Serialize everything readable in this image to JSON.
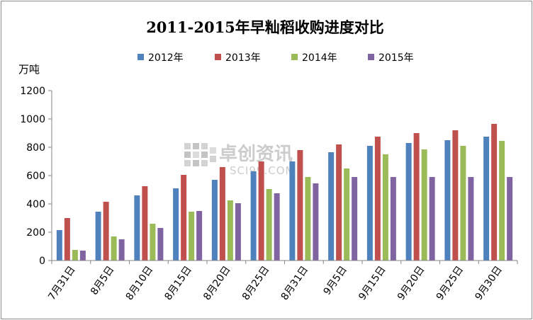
{
  "chart_data": {
    "type": "bar",
    "title": "2011-2015年早籼稻收购进度对比",
    "ylabel": "万吨",
    "ylim": [
      0,
      1200
    ],
    "yticks": [
      "0",
      "200",
      "400",
      "600",
      "800",
      "1000",
      "1200"
    ],
    "grid": false,
    "legend_position": "top",
    "categories": [
      "7月31日",
      "8月5日",
      "8月10日",
      "8月15日",
      "8月20日",
      "8月25日",
      "8月31日",
      "9月5日",
      "9月15日",
      "9月20日",
      "9月25日",
      "9月30日"
    ],
    "series": [
      {
        "name": "2012年",
        "color": "#4f81bd",
        "values": [
          215,
          345,
          460,
          510,
          570,
          630,
          700,
          765,
          810,
          830,
          850,
          875
        ]
      },
      {
        "name": "2013年",
        "color": "#c0504d",
        "values": [
          300,
          415,
          525,
          605,
          660,
          700,
          780,
          820,
          875,
          900,
          920,
          965
        ]
      },
      {
        "name": "2014年",
        "color": "#9bbb59",
        "values": [
          75,
          170,
          260,
          345,
          425,
          505,
          590,
          650,
          750,
          785,
          810,
          845
        ]
      },
      {
        "name": "2015年",
        "color": "#8064a2",
        "values": [
          70,
          150,
          230,
          350,
          405,
          475,
          545,
          590,
          590,
          590,
          590,
          590
        ]
      }
    ]
  },
  "watermark": {
    "text": "卓创资讯",
    "subtext": "SCI99.COM"
  }
}
